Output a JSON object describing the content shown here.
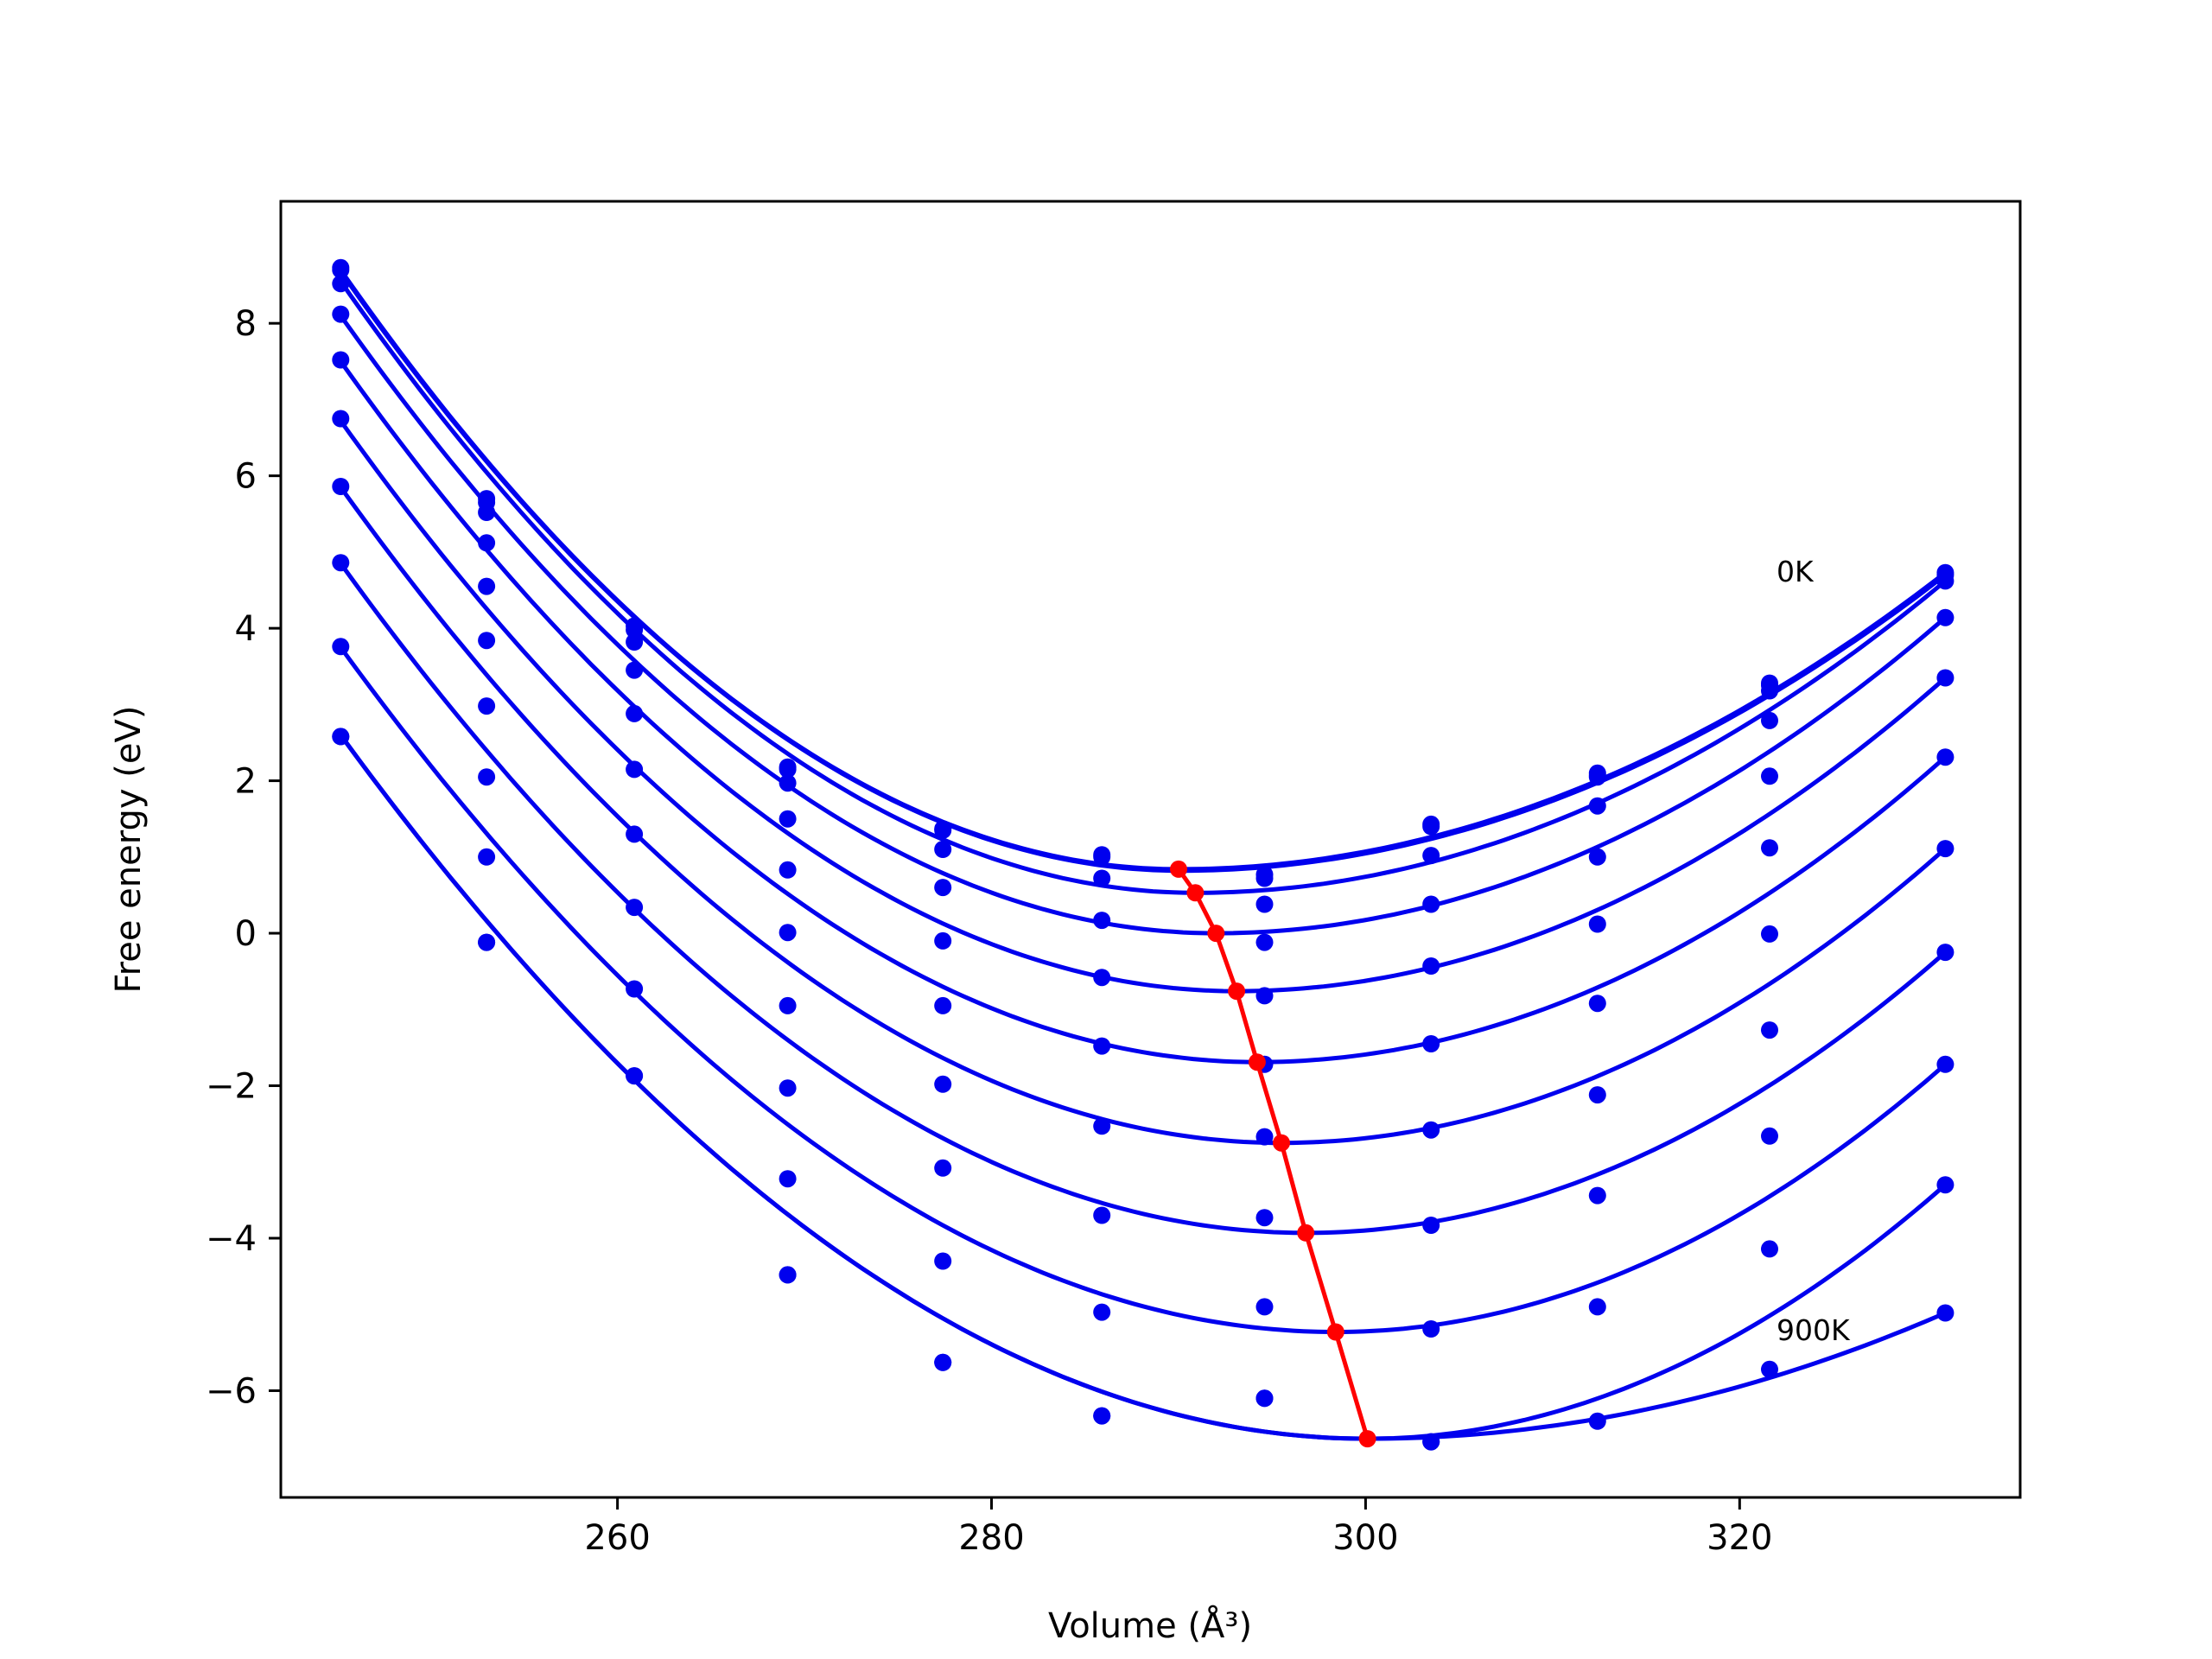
{
  "chart_data": {
    "type": "scatter",
    "xlabel": "Volume (Å³)",
    "ylabel": "Free energy (eV)",
    "xlim": [
      242,
      335
    ],
    "ylim": [
      -7.4,
      9.6
    ],
    "xticks": [
      260,
      280,
      300,
      320
    ],
    "yticks": [
      -6,
      -4,
      -2,
      0,
      2,
      4,
      6,
      8
    ],
    "grid": false,
    "legend": "none",
    "colors": {
      "series": "#0000ee",
      "minima": "#ff0000"
    },
    "volumes": [
      245.2,
      253.0,
      260.9,
      269.1,
      277.4,
      285.9,
      294.6,
      303.5,
      312.4,
      321.6,
      331.0
    ],
    "series": [
      {
        "points": [
          8.73,
          5.7,
          4.03,
          2.18,
          1.37,
          1.03,
          0.77,
          1.43,
          2.1,
          3.28,
          4.73
        ],
        "fit_min_x": 290.0,
        "fit_min_y": 0.84,
        "fit_start": 8.7,
        "fit_end": 4.73
      },
      {
        "points": [
          8.7,
          5.65,
          3.98,
          2.15,
          1.35,
          1.0,
          0.72,
          1.4,
          2.07,
          3.25,
          4.7
        ],
        "fit_min_x": 290.1,
        "fit_min_y": 0.82,
        "fit_start": 8.68,
        "fit_end": 4.7
      },
      {
        "points": [
          8.52,
          5.52,
          3.82,
          1.97,
          1.1,
          0.72,
          0.38,
          1.02,
          2.05,
          3.18,
          4.62
        ],
        "fit_min_x": 290.9,
        "fit_min_y": 0.53,
        "fit_start": 8.55,
        "fit_end": 4.62
      },
      {
        "points": [
          8.12,
          5.12,
          3.45,
          1.5,
          0.6,
          0.17,
          -0.12,
          0.38,
          1.67,
          2.79,
          4.14
        ],
        "fit_min_x": 292.0,
        "fit_min_y": 0.0,
        "fit_start": 8.1,
        "fit_end": 4.14
      },
      {
        "points": [
          7.52,
          4.55,
          2.88,
          0.83,
          -0.1,
          -0.58,
          -0.82,
          -0.43,
          1.0,
          2.06,
          3.35
        ],
        "fit_min_x": 293.1,
        "fit_min_y": -0.76,
        "fit_start": 7.5,
        "fit_end": 3.35
      },
      {
        "points": [
          6.75,
          3.84,
          2.15,
          0.01,
          -0.95,
          -1.48,
          -1.72,
          -1.45,
          0.12,
          1.12,
          2.31
        ],
        "fit_min_x": 294.2,
        "fit_min_y": -1.69,
        "fit_start": 6.72,
        "fit_end": 2.31
      },
      {
        "points": [
          5.86,
          2.98,
          1.3,
          -0.95,
          -1.98,
          -2.53,
          -2.67,
          -2.58,
          -0.92,
          -0.01,
          1.11
        ],
        "fit_min_x": 295.5,
        "fit_min_y": -2.75,
        "fit_start": 5.85,
        "fit_end": 1.11
      },
      {
        "points": [
          4.86,
          2.05,
          0.34,
          -2.03,
          -3.08,
          -3.7,
          -3.73,
          -3.83,
          -2.12,
          -1.27,
          -0.25
        ],
        "fit_min_x": 296.8,
        "fit_min_y": -3.93,
        "fit_start": 4.85,
        "fit_end": -0.25
      },
      {
        "points": [
          3.76,
          1.0,
          -0.73,
          -3.22,
          -4.3,
          -4.97,
          -4.9,
          -5.19,
          -3.44,
          -2.66,
          -1.72
        ],
        "fit_min_x": 298.4,
        "fit_min_y": -5.23,
        "fit_start": 3.75,
        "fit_end": -1.72
      },
      {
        "points": [
          2.58,
          -0.12,
          -1.87,
          -4.48,
          -5.63,
          -6.33,
          -6.1,
          -6.67,
          -4.9,
          -4.14,
          -3.3
        ],
        "fit_min_x": 300.1,
        "fit_min_y": -6.63,
        "fit_start": 2.6,
        "fit_end": -3.3
      },
      {
        "points": [
          2.58,
          -0.12,
          -1.87,
          -4.48,
          -5.63,
          -6.33,
          -6.1,
          -6.67,
          -6.4,
          -5.72,
          -4.98
        ],
        "fit_min_x": 300.1,
        "fit_min_y": -6.63,
        "fit_start": 2.6,
        "fit_end": -4.98
      }
    ],
    "minima_path": {
      "x": [
        290.0,
        290.9,
        292.0,
        293.1,
        294.2,
        295.5,
        296.8,
        298.4,
        300.1
      ],
      "y": [
        0.84,
        0.53,
        0.0,
        -0.76,
        -1.69,
        -2.75,
        -3.93,
        -5.23,
        -6.63
      ]
    },
    "annotations": [
      {
        "text": "0K",
        "x": 321.6,
        "y": 4.75
      },
      {
        "text": "900K",
        "x": 321.6,
        "y": -5.2
      }
    ]
  }
}
